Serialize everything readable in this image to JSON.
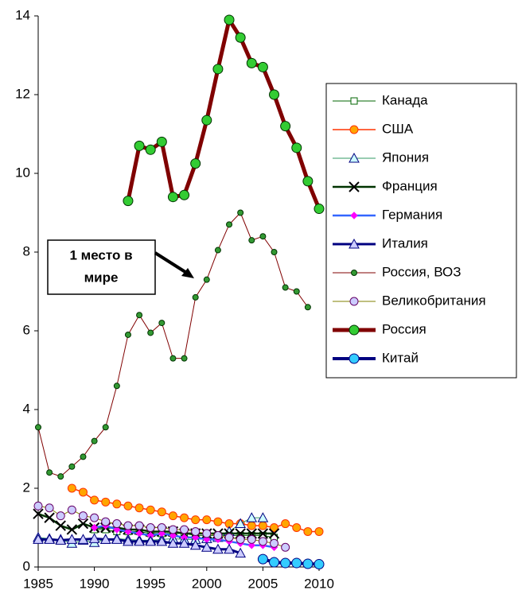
{
  "chart_data": {
    "type": "line",
    "x": [
      1985,
      1986,
      1987,
      1988,
      1989,
      1990,
      1991,
      1992,
      1993,
      1994,
      1995,
      1996,
      1997,
      1998,
      1999,
      2000,
      2001,
      2002,
      2003,
      2004,
      2005,
      2006,
      2007,
      2008,
      2009,
      2010
    ],
    "xlim": [
      1985,
      2010
    ],
    "xticks": [
      1985,
      1990,
      1995,
      2000,
      2005,
      2010
    ],
    "ylim": [
      0,
      14
    ],
    "yticks": [
      0,
      2,
      4,
      6,
      8,
      10,
      12,
      14
    ],
    "grid": false,
    "legend": "right",
    "annotation": [
      "1 место в",
      "мире"
    ],
    "series": [
      {
        "name": "Канада",
        "color": "#006600",
        "width": 1,
        "marker": "square",
        "marker_color": "#ffffff",
        "marker_stroke": "#006600",
        "values": [
          null,
          null,
          null,
          null,
          null,
          0.95,
          0.95,
          0.9,
          0.9,
          0.9,
          0.85,
          0.85,
          0.85,
          0.85,
          0.8,
          0.8,
          0.8,
          0.8,
          0.8,
          0.8,
          0.8,
          0.75,
          null,
          null,
          null,
          null
        ]
      },
      {
        "name": "США",
        "color": "#ff3300",
        "width": 1.5,
        "marker": "circle",
        "marker_color": "#ffa500",
        "marker_stroke": "#ff3300",
        "values": [
          null,
          null,
          null,
          2.0,
          1.9,
          1.7,
          1.65,
          1.6,
          1.55,
          1.5,
          1.45,
          1.4,
          1.3,
          1.25,
          1.2,
          1.2,
          1.15,
          1.1,
          1.1,
          1.05,
          1.05,
          1.0,
          1.1,
          1.0,
          0.9,
          0.9
        ]
      },
      {
        "name": "Япония",
        "color": "#339966",
        "width": 1,
        "marker": "triangle",
        "marker_color": "#ccffff",
        "marker_stroke": "#000080",
        "values": [
          0.75,
          0.72,
          0.7,
          0.6,
          0.68,
          0.62,
          0.7,
          0.72,
          0.7,
          0.68,
          0.68,
          0.7,
          0.72,
          0.7,
          0.7,
          0.72,
          0.75,
          0.9,
          1.1,
          1.25,
          1.25,
          null,
          null,
          null,
          null,
          null
        ]
      },
      {
        "name": "Франция",
        "color": "#003300",
        "width": 2.5,
        "marker": "x",
        "marker_color": "#003300",
        "marker_stroke": "#000000",
        "values": [
          1.35,
          1.25,
          1.05,
          0.95,
          1.1,
          1.0,
          1.0,
          1.0,
          0.95,
          0.95,
          0.9,
          0.9,
          0.9,
          0.85,
          0.85,
          0.85,
          0.85,
          0.85,
          0.85,
          0.85,
          0.85,
          0.85,
          null,
          null,
          null,
          null
        ]
      },
      {
        "name": "Германия",
        "color": "#3366ff",
        "width": 2.5,
        "marker": "diamond",
        "marker_color": "#ff00ff",
        "marker_stroke": "#ff00ff",
        "values": [
          null,
          null,
          null,
          null,
          null,
          1.0,
          1.05,
          0.95,
          0.9,
          0.85,
          0.8,
          0.85,
          0.8,
          0.75,
          0.75,
          0.7,
          0.7,
          0.65,
          0.6,
          0.55,
          0.55,
          0.5,
          null,
          null,
          null,
          null
        ]
      },
      {
        "name": "Италия",
        "color": "#000080",
        "width": 3,
        "marker": "triangle",
        "marker_color": "#ccccff",
        "marker_stroke": "#000080",
        "values": [
          0.7,
          0.7,
          0.68,
          0.7,
          0.7,
          0.72,
          0.7,
          0.7,
          0.65,
          0.65,
          0.65,
          0.65,
          0.6,
          0.6,
          0.55,
          0.5,
          0.45,
          0.45,
          0.35,
          null,
          null,
          null,
          null,
          null,
          null,
          null
        ]
      },
      {
        "name": "Россия, ВОЗ",
        "color": "#800000",
        "width": 1,
        "marker": "smallcircle",
        "marker_color": "#339933",
        "marker_stroke": "#003300",
        "values": [
          3.55,
          2.4,
          2.3,
          2.55,
          2.8,
          3.2,
          3.55,
          4.6,
          5.9,
          6.4,
          5.95,
          6.2,
          5.3,
          5.3,
          6.85,
          7.3,
          8.05,
          8.7,
          9.0,
          8.3,
          8.4,
          8.0,
          7.1,
          7.0,
          6.6,
          null
        ]
      },
      {
        "name": "Великобритания",
        "color": "#808000",
        "width": 1,
        "marker": "circle",
        "marker_color": "#ccccff",
        "marker_stroke": "#660066",
        "values": [
          1.55,
          1.5,
          1.3,
          1.45,
          1.3,
          1.25,
          1.15,
          1.1,
          1.05,
          1.05,
          1.0,
          1.0,
          0.95,
          0.95,
          0.9,
          0.85,
          0.8,
          0.75,
          0.7,
          0.7,
          0.65,
          0.6,
          0.5,
          null,
          null,
          null
        ]
      },
      {
        "name": "Россия",
        "color": "#800000",
        "width": 5,
        "marker": "bigcircle",
        "marker_color": "#33cc33",
        "marker_stroke": "#003300",
        "values": [
          null,
          null,
          null,
          null,
          null,
          null,
          null,
          null,
          9.3,
          10.7,
          10.6,
          10.8,
          9.4,
          9.45,
          10.25,
          11.35,
          12.65,
          13.9,
          13.45,
          12.8,
          12.7,
          12.0,
          11.2,
          10.65,
          9.8,
          9.1
        ]
      },
      {
        "name": "Китай",
        "color": "#000080",
        "width": 4,
        "marker": "bigcircle",
        "marker_color": "#33ccff",
        "marker_stroke": "#000080",
        "values": [
          null,
          null,
          null,
          null,
          null,
          null,
          null,
          null,
          null,
          null,
          null,
          null,
          null,
          null,
          null,
          null,
          null,
          null,
          null,
          null,
          0.2,
          0.12,
          0.1,
          0.1,
          0.08,
          0.07
        ]
      }
    ]
  }
}
